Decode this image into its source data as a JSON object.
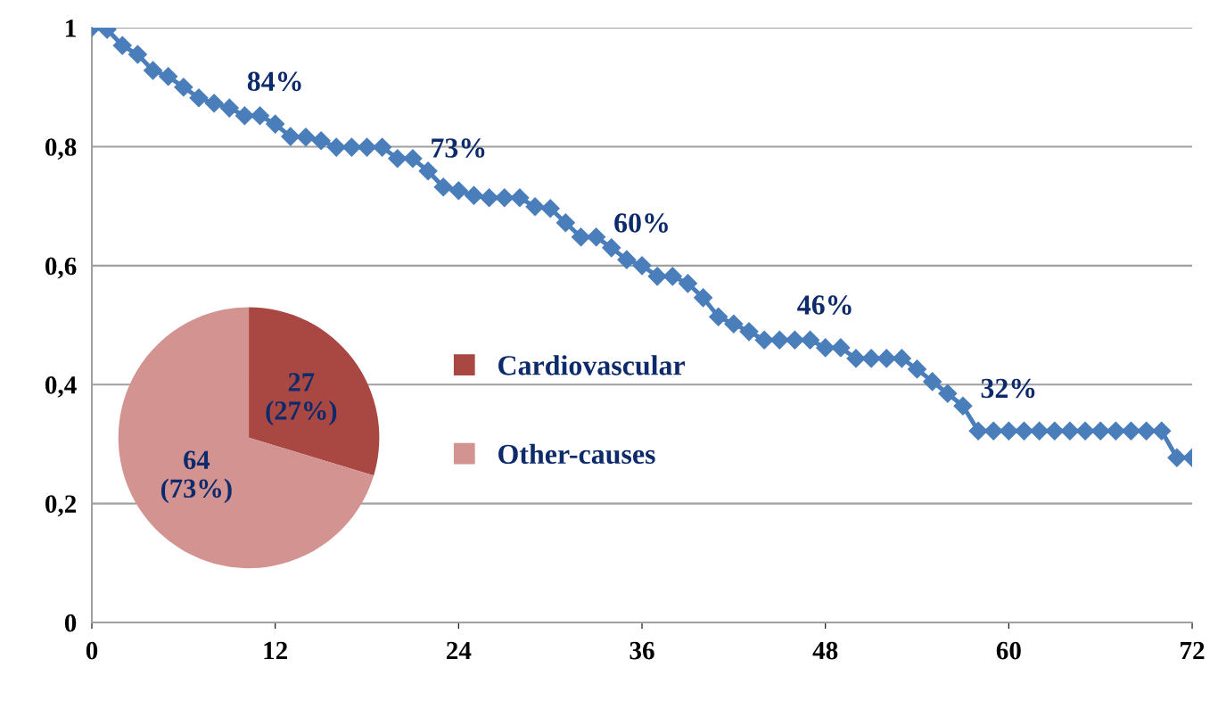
{
  "chart_data": [
    {
      "type": "line",
      "x": [
        0,
        1,
        2,
        3,
        4,
        5,
        6,
        7,
        8,
        9,
        10,
        11,
        12,
        13,
        14,
        15,
        16,
        17,
        18,
        19,
        20,
        21,
        22,
        23,
        24,
        25,
        26,
        27,
        28,
        29,
        30,
        31,
        32,
        33,
        34,
        35,
        36,
        37,
        38,
        39,
        40,
        41,
        42,
        43,
        44,
        45,
        46,
        47,
        48,
        49,
        50,
        51,
        52,
        53,
        54,
        55,
        56,
        57,
        58,
        59,
        60,
        61,
        62,
        63,
        64,
        65,
        66,
        67,
        68,
        69,
        70,
        71,
        72
      ],
      "series": [
        {
          "color": "#4a7ebb",
          "values": [
            1.0,
            0.997,
            0.97,
            0.955,
            0.928,
            0.918,
            0.9,
            0.882,
            0.873,
            0.865,
            0.852,
            0.852,
            0.838,
            0.817,
            0.816,
            0.81,
            0.799,
            0.799,
            0.799,
            0.799,
            0.78,
            0.78,
            0.759,
            0.732,
            0.726,
            0.718,
            0.714,
            0.714,
            0.714,
            0.699,
            0.696,
            0.672,
            0.648,
            0.648,
            0.63,
            0.61,
            0.6,
            0.582,
            0.582,
            0.57,
            0.546,
            0.514,
            0.502,
            0.489,
            0.475,
            0.475,
            0.475,
            0.475,
            0.462,
            0.462,
            0.444,
            0.444,
            0.444,
            0.444,
            0.426,
            0.405,
            0.385,
            0.364,
            0.322,
            0.322,
            0.322,
            0.322,
            0.322,
            0.322,
            0.322,
            0.322,
            0.322,
            0.322,
            0.322,
            0.322,
            0.322,
            0.277,
            0.277
          ]
        }
      ],
      "xlim": [
        0,
        72
      ],
      "xticks": [
        0,
        12,
        24,
        36,
        48,
        60,
        72
      ],
      "ylim": [
        0,
        1
      ],
      "yticks": [
        0,
        {
          "value": 0.2,
          "label": "0,2"
        },
        {
          "value": 0.4,
          "label": "0,4"
        },
        {
          "value": 0.6,
          "label": "0,6"
        },
        {
          "value": 0.8,
          "label": "0,8"
        },
        1
      ],
      "grid": "y",
      "marker": "diamond",
      "line_style": "solid",
      "legend": false,
      "annotations": [
        {
          "text": "84%",
          "x": 12,
          "y": 0.838
        },
        {
          "text": "73%",
          "x": 24,
          "y": 0.726
        },
        {
          "text": "60%",
          "x": 36,
          "y": 0.6
        },
        {
          "text": "46%",
          "x": 48,
          "y": 0.462
        },
        {
          "text": "32%",
          "x": 60,
          "y": 0.322
        }
      ]
    },
    {
      "type": "pie",
      "categories": [
        "Cardiovascular",
        "Other-causes"
      ],
      "values": [
        27,
        64
      ],
      "colors": [
        "#a94743",
        "#d39391"
      ],
      "value_labels": [
        "27\n(27%)",
        "64\n(73%)"
      ],
      "legend": "right"
    }
  ]
}
